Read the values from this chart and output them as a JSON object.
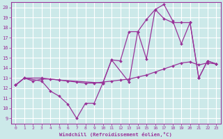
{
  "xlabel": "Windchill (Refroidissement éolien,°C)",
  "ylabel": "",
  "bg_color": "#cce9e9",
  "grid_color": "#ffffff",
  "line_color": "#993399",
  "xlim": [
    -0.5,
    23.5
  ],
  "ylim": [
    8.5,
    20.5
  ],
  "yticks": [
    9,
    10,
    11,
    12,
    13,
    14,
    15,
    16,
    17,
    18,
    19,
    20
  ],
  "xticks": [
    0,
    1,
    2,
    3,
    4,
    5,
    6,
    7,
    8,
    9,
    10,
    11,
    12,
    13,
    14,
    15,
    16,
    17,
    18,
    19,
    20,
    21,
    22,
    23
  ],
  "lines": [
    {
      "x": [
        0,
        1,
        3,
        5,
        10,
        11,
        13,
        14,
        15,
        16,
        17,
        18,
        19,
        20,
        21,
        22,
        23
      ],
      "y": [
        12.3,
        13.0,
        13.0,
        12.8,
        12.5,
        14.8,
        12.6,
        17.6,
        14.9,
        19.8,
        20.3,
        18.7,
        16.4,
        18.5,
        13.0,
        14.7,
        14.4
      ]
    },
    {
      "x": [
        0,
        1,
        3,
        4,
        5,
        6,
        7,
        8,
        9,
        10,
        11,
        12,
        13,
        14,
        15,
        16,
        17,
        18,
        19,
        20,
        21,
        22,
        23
      ],
      "y": [
        12.3,
        13.0,
        12.7,
        11.7,
        11.2,
        10.4,
        9.0,
        10.5,
        10.5,
        12.5,
        14.8,
        14.7,
        17.6,
        17.6,
        18.8,
        19.8,
        18.9,
        18.5,
        18.5,
        18.5,
        13.0,
        14.7,
        14.4
      ]
    },
    {
      "x": [
        0,
        1,
        2,
        3,
        4,
        5,
        6,
        7,
        8,
        9,
        10,
        11,
        12,
        13,
        14,
        15,
        16,
        17,
        18,
        19,
        20,
        21,
        22,
        23
      ],
      "y": [
        12.3,
        13.0,
        12.7,
        12.9,
        12.9,
        12.8,
        12.7,
        12.6,
        12.5,
        12.5,
        12.6,
        12.7,
        12.8,
        12.9,
        13.1,
        13.3,
        13.6,
        13.9,
        14.2,
        14.5,
        14.6,
        14.3,
        14.5,
        14.4
      ]
    }
  ]
}
